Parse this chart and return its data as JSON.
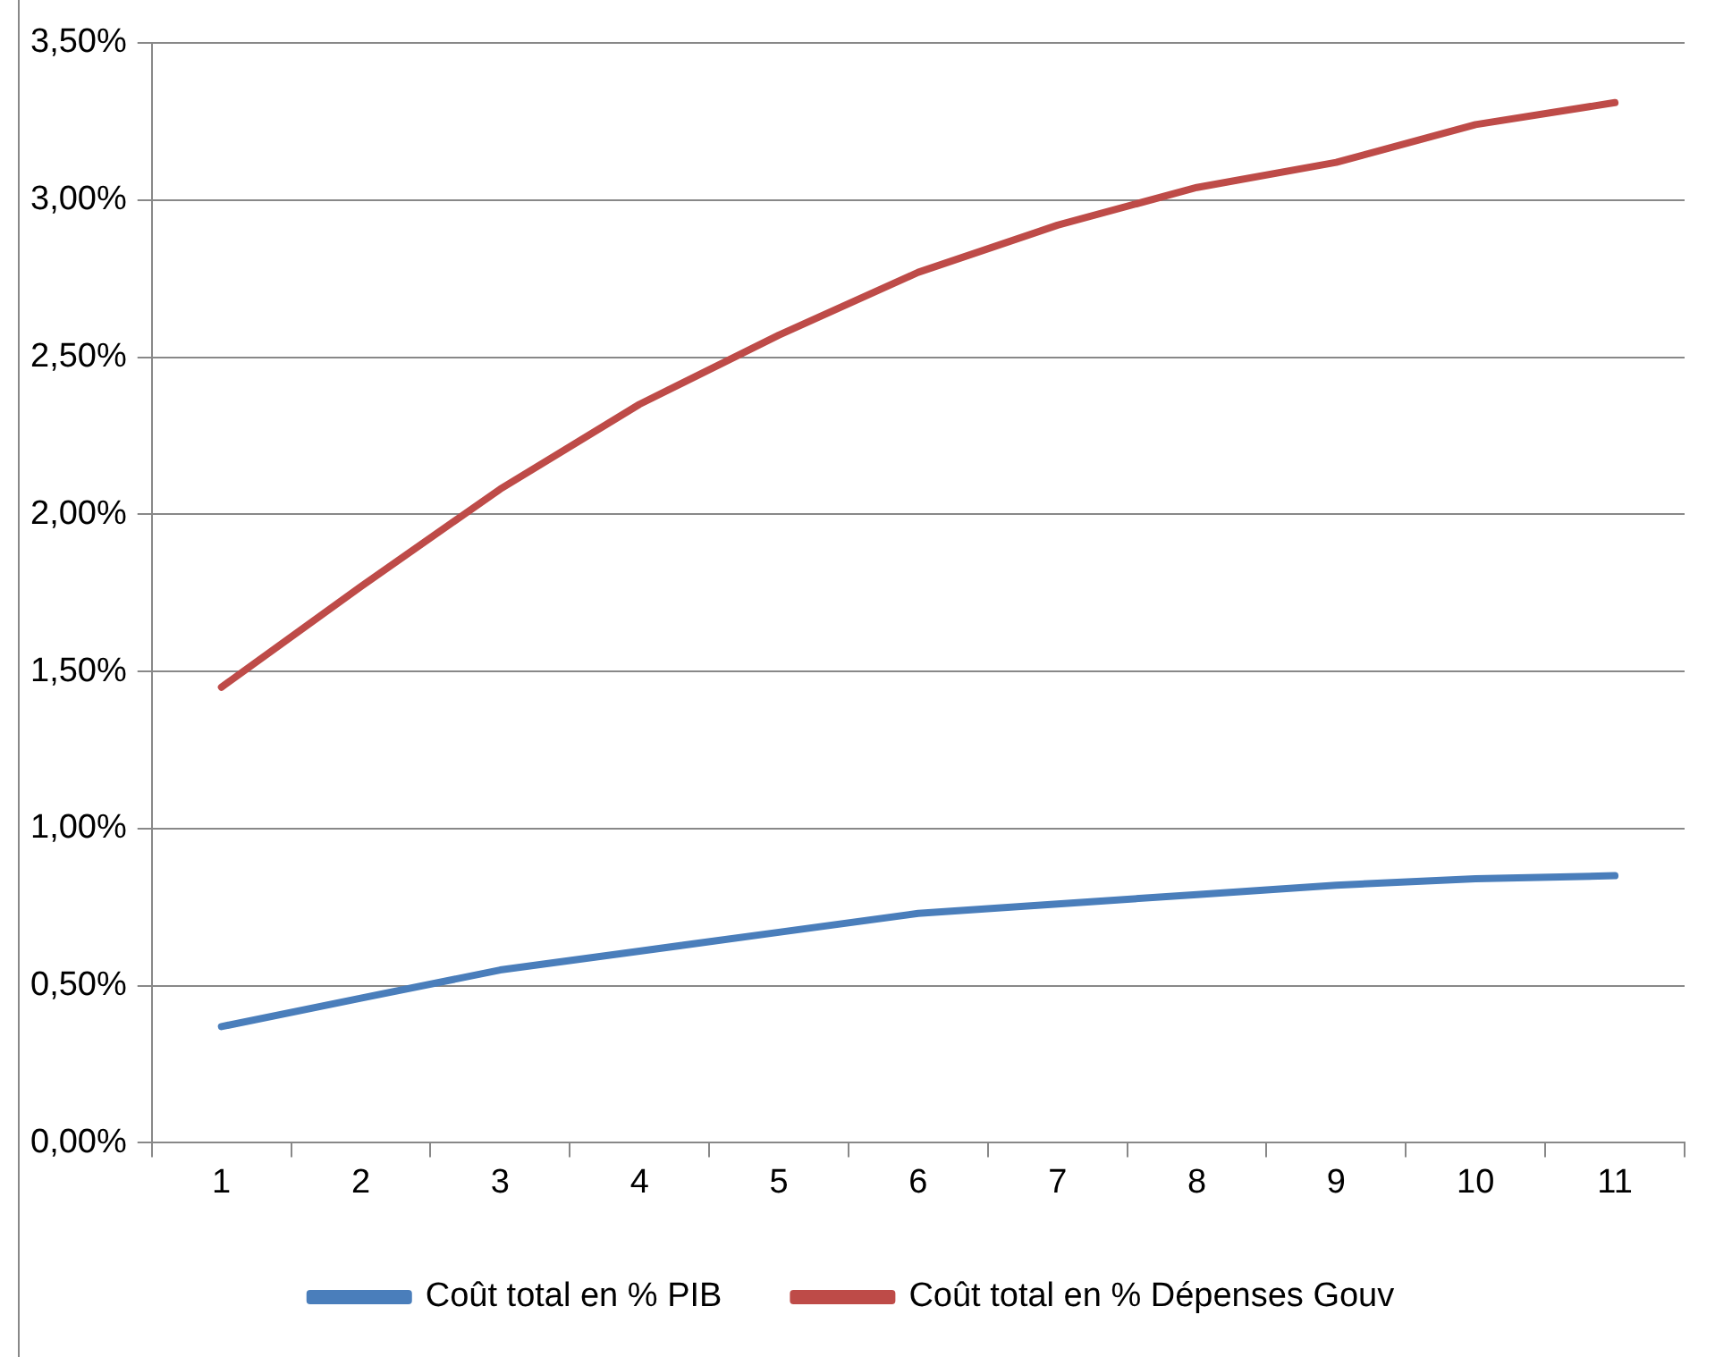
{
  "chart_data": {
    "type": "line",
    "categories": [
      "1",
      "2",
      "3",
      "4",
      "5",
      "6",
      "7",
      "8",
      "9",
      "10",
      "11"
    ],
    "series": [
      {
        "name": "Coût total en % PIB",
        "color": "#4a7ebb",
        "values": [
          0.37,
          0.46,
          0.55,
          0.61,
          0.67,
          0.73,
          0.76,
          0.79,
          0.82,
          0.84,
          0.85
        ]
      },
      {
        "name": "Coût total en % Dépenses Gouv",
        "color": "#be4b48",
        "values": [
          1.45,
          1.77,
          2.08,
          2.35,
          2.57,
          2.77,
          2.92,
          3.04,
          3.12,
          3.24,
          3.31
        ]
      }
    ],
    "ylim": [
      0,
      3.5
    ],
    "yticks": [
      {
        "value": 0,
        "label": "0,00%"
      },
      {
        "value": 0.5,
        "label": "0,50%"
      },
      {
        "value": 1,
        "label": "1,00%"
      },
      {
        "value": 1.5,
        "label": "1,50%"
      },
      {
        "value": 2,
        "label": "2,00%"
      },
      {
        "value": 2.5,
        "label": "2,50%"
      },
      {
        "value": 3,
        "label": "3,00%"
      },
      {
        "value": 3.5,
        "label": "3,50%"
      }
    ],
    "grid": "y",
    "legend": "bottom",
    "marker": "none",
    "line_style": "solid"
  }
}
